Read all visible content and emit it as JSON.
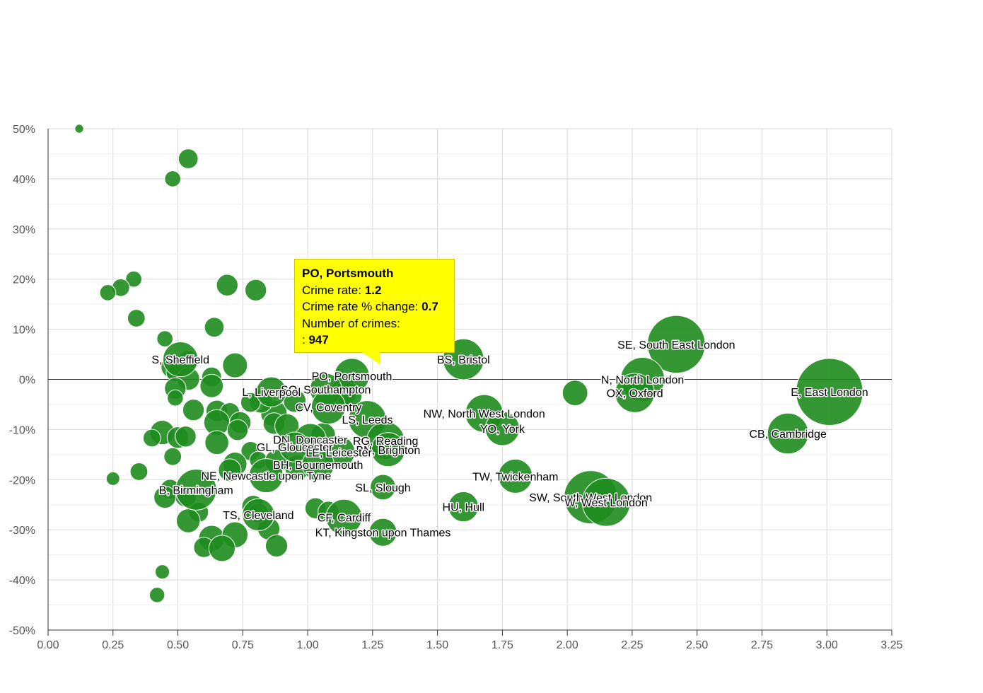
{
  "chart_data": {
    "type": "scatter",
    "xlim": [
      0,
      3.25
    ],
    "ylim": [
      -50,
      50
    ],
    "x_ticks": [
      "0.00",
      "0.25",
      "0.50",
      "0.75",
      "1.00",
      "1.25",
      "1.50",
      "1.75",
      "2.00",
      "2.25",
      "2.50",
      "2.75",
      "3.00",
      "3.25"
    ],
    "y_ticks": [
      "50%",
      "40%",
      "30%",
      "20%",
      "10%",
      "0%",
      "-10%",
      "-20%",
      "-30%",
      "-40%",
      "-50%"
    ],
    "grid": true,
    "legend": "none",
    "bubble_color": "#1e8c1e",
    "labeled_points": [
      {
        "label": "S, Sheffield",
        "x": 0.51,
        "y": 4,
        "size": 950
      },
      {
        "label": "PO, Portsmouth",
        "x": 1.17,
        "y": 0.7,
        "size": 947
      },
      {
        "label": "BS, Bristol",
        "x": 1.6,
        "y": 4,
        "size": 1300
      },
      {
        "label": "SE, South East London",
        "x": 2.42,
        "y": 7,
        "size": 2600
      },
      {
        "label": "N, North London",
        "x": 2.29,
        "y": 0,
        "size": 1500
      },
      {
        "label": "OX, Oxford",
        "x": 2.26,
        "y": -2.7,
        "size": 1200
      },
      {
        "label": "E, East London",
        "x": 3.01,
        "y": -2.5,
        "size": 3500
      },
      {
        "label": "CB, Cambridge",
        "x": 2.85,
        "y": -10.8,
        "size": 1300
      },
      {
        "label": "SO, Southampton",
        "x": 1.07,
        "y": -2,
        "size": 800
      },
      {
        "label": "L, Liverpool",
        "x": 0.86,
        "y": -2.5,
        "size": 700
      },
      {
        "label": "CV, Coventry",
        "x": 1.08,
        "y": -5.5,
        "size": 900
      },
      {
        "label": "NW, North West London",
        "x": 1.68,
        "y": -6.8,
        "size": 1100
      },
      {
        "label": "LS, Leeds",
        "x": 1.23,
        "y": -8,
        "size": 1100
      },
      {
        "label": "YO, York",
        "x": 1.75,
        "y": -9.8,
        "size": 900
      },
      {
        "label": "DN, Doncaster",
        "x": 1.01,
        "y": -12,
        "size": 800
      },
      {
        "label": "RG, Reading",
        "x": 1.3,
        "y": -12.2,
        "size": 1100
      },
      {
        "label": "GL, Gloucester",
        "x": 0.95,
        "y": -13.5,
        "size": 700
      },
      {
        "label": "BN, Brighton",
        "x": 1.31,
        "y": -14,
        "size": 900
      },
      {
        "label": "LE, Leicester",
        "x": 1.12,
        "y": -14.5,
        "size": 800
      },
      {
        "label": "BH, Bournemouth",
        "x": 1.04,
        "y": -17,
        "size": 800
      },
      {
        "label": "NE, Newcastle upon Tyne",
        "x": 0.84,
        "y": -19.2,
        "size": 900
      },
      {
        "label": "TW, Twickenham",
        "x": 1.8,
        "y": -19.3,
        "size": 900
      },
      {
        "label": "B, Birmingham",
        "x": 0.57,
        "y": -22,
        "size": 1300
      },
      {
        "label": "SL, Slough",
        "x": 1.29,
        "y": -21.5,
        "size": 500
      },
      {
        "label": "SW, South West London",
        "x": 2.09,
        "y": -23.5,
        "size": 2200
      },
      {
        "label": "W, West London",
        "x": 2.15,
        "y": -24.5,
        "size": 1800
      },
      {
        "label": "HU, Hull",
        "x": 1.6,
        "y": -25.4,
        "size": 700
      },
      {
        "label": "TS, Cleveland",
        "x": 0.81,
        "y": -27,
        "size": 800
      },
      {
        "label": "CF, Cardiff",
        "x": 1.14,
        "y": -27.5,
        "size": 1000
      },
      {
        "label": "KT, Kingston upon Thames",
        "x": 1.29,
        "y": -30.5,
        "size": 600
      }
    ],
    "points": [
      {
        "x": 0.12,
        "y": 50,
        "size": 60
      },
      {
        "x": 0.54,
        "y": 44,
        "size": 300
      },
      {
        "x": 0.48,
        "y": 40,
        "size": 200
      },
      {
        "x": 0.33,
        "y": 20,
        "size": 200
      },
      {
        "x": 0.28,
        "y": 18.3,
        "size": 240
      },
      {
        "x": 0.23,
        "y": 17.3,
        "size": 200
      },
      {
        "x": 0.69,
        "y": 18.8,
        "size": 360
      },
      {
        "x": 0.8,
        "y": 17.8,
        "size": 360
      },
      {
        "x": 0.34,
        "y": 12.2,
        "size": 240
      },
      {
        "x": 0.64,
        "y": 10.4,
        "size": 300
      },
      {
        "x": 0.45,
        "y": 8.1,
        "size": 200
      },
      {
        "x": 0.72,
        "y": 2.8,
        "size": 480
      },
      {
        "x": 0.54,
        "y": 3.9,
        "size": 280
      },
      {
        "x": 0.48,
        "y": 2.5,
        "size": 420
      },
      {
        "x": 0.49,
        "y": 1.4,
        "size": 260
      },
      {
        "x": 0.54,
        "y": 0.1,
        "size": 400
      },
      {
        "x": 0.63,
        "y": 0.5,
        "size": 300
      },
      {
        "x": 0.63,
        "y": -1.3,
        "size": 420
      },
      {
        "x": 0.49,
        "y": -1.8,
        "size": 360
      },
      {
        "x": 0.49,
        "y": -3.7,
        "size": 200
      },
      {
        "x": 0.56,
        "y": -6.1,
        "size": 360
      },
      {
        "x": 0.65,
        "y": -6.3,
        "size": 360
      },
      {
        "x": 0.7,
        "y": -6.6,
        "size": 300
      },
      {
        "x": 0.65,
        "y": -8.6,
        "size": 520
      },
      {
        "x": 0.74,
        "y": -8.6,
        "size": 360
      },
      {
        "x": 0.73,
        "y": -10.1,
        "size": 340
      },
      {
        "x": 0.44,
        "y": -10.6,
        "size": 460
      },
      {
        "x": 0.4,
        "y": -11.7,
        "size": 240
      },
      {
        "x": 0.5,
        "y": -11.6,
        "size": 360
      },
      {
        "x": 0.53,
        "y": -11.4,
        "size": 340
      },
      {
        "x": 0.65,
        "y": -12.6,
        "size": 440
      },
      {
        "x": 0.48,
        "y": -15.4,
        "size": 240
      },
      {
        "x": 0.78,
        "y": -14.3,
        "size": 280
      },
      {
        "x": 0.81,
        "y": -16.1,
        "size": 240
      },
      {
        "x": 0.72,
        "y": -16.9,
        "size": 440
      },
      {
        "x": 0.7,
        "y": -18.1,
        "size": 400
      },
      {
        "x": 0.35,
        "y": -18.4,
        "size": 240
      },
      {
        "x": 0.25,
        "y": -19.8,
        "size": 140
      },
      {
        "x": 0.47,
        "y": -21.9,
        "size": 300
      },
      {
        "x": 0.53,
        "y": -23.3,
        "size": 360
      },
      {
        "x": 0.45,
        "y": -23.5,
        "size": 380
      },
      {
        "x": 0.58,
        "y": -26.5,
        "size": 300
      },
      {
        "x": 0.54,
        "y": -28.2,
        "size": 440
      },
      {
        "x": 0.79,
        "y": -25.4,
        "size": 400
      },
      {
        "x": 0.85,
        "y": -29.8,
        "size": 380
      },
      {
        "x": 0.63,
        "y": -31.7,
        "size": 520
      },
      {
        "x": 0.72,
        "y": -31,
        "size": 520
      },
      {
        "x": 0.6,
        "y": -33.5,
        "size": 320
      },
      {
        "x": 0.67,
        "y": -33.7,
        "size": 540
      },
      {
        "x": 0.88,
        "y": -33.2,
        "size": 380
      },
      {
        "x": 0.44,
        "y": -38.4,
        "size": 160
      },
      {
        "x": 0.42,
        "y": -43,
        "size": 180
      },
      {
        "x": 0.87,
        "y": -6.8,
        "size": 540
      },
      {
        "x": 0.87,
        "y": -8.8,
        "size": 360
      },
      {
        "x": 0.92,
        "y": -9.3,
        "size": 460
      },
      {
        "x": 0.82,
        "y": -4.4,
        "size": 420
      },
      {
        "x": 0.78,
        "y": -4.6,
        "size": 300
      },
      {
        "x": 0.95,
        "y": -4.3,
        "size": 400
      },
      {
        "x": 1.06,
        "y": -11.1,
        "size": 460
      },
      {
        "x": 0.96,
        "y": -17.6,
        "size": 480
      },
      {
        "x": 0.88,
        "y": -16.3,
        "size": 420
      },
      {
        "x": 1.03,
        "y": -25.7,
        "size": 340
      },
      {
        "x": 1.08,
        "y": -26.4,
        "size": 340
      },
      {
        "x": 0.81,
        "y": -26.6,
        "size": 300
      },
      {
        "x": 1.14,
        "y": -2.4,
        "size": 560
      },
      {
        "x": 1.16,
        "y": -3.2,
        "size": 500
      },
      {
        "x": 2.03,
        "y": -2.7,
        "size": 500
      }
    ]
  },
  "tooltip": {
    "title": "PO, Portsmouth",
    "rate_label": "Crime rate:",
    "rate_value": "1.2",
    "change_label": "Crime rate % change:",
    "change_value": "0.7",
    "count_label": "Number of crimes:",
    "count_prefix": ":",
    "count_value": "947"
  }
}
